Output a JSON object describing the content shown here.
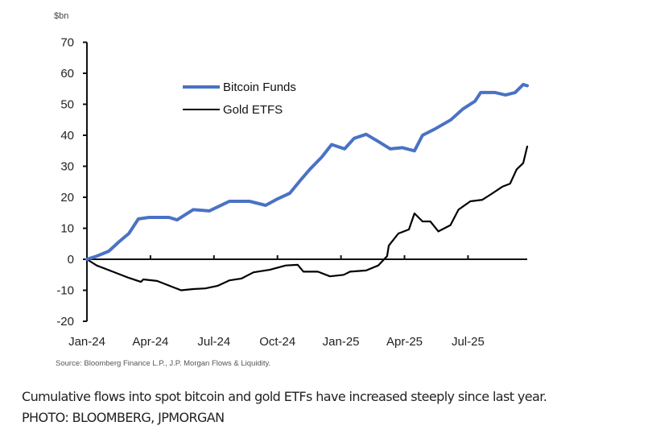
{
  "chart_data": {
    "type": "line",
    "unit_label": "$bn",
    "ylim": [
      -20,
      70
    ],
    "yticks": [
      70,
      60,
      50,
      40,
      30,
      20,
      10,
      0,
      -10,
      -20
    ],
    "ytick_labels": [
      "70",
      "60",
      "50",
      "40",
      "30",
      "20",
      "10",
      "0",
      "-10",
      "-20"
    ],
    "xlim_months": [
      0,
      21
    ],
    "xtick_positions_months": [
      0,
      3,
      6,
      9,
      12,
      15,
      18
    ],
    "xtick_labels": [
      "Jan-24",
      "Apr-24",
      "Jul-24",
      "Oct-24",
      "Jan-25",
      "Apr-25",
      "Jul-25"
    ],
    "legend": {
      "position": "top-center"
    },
    "series": [
      {
        "name": "Bitcoin Funds",
        "color": "#4a72c4",
        "x_months": [
          0,
          0.46,
          1.03,
          1.52,
          1.98,
          2.43,
          2.93,
          3.88,
          4.26,
          5.02,
          5.78,
          6.73,
          7.68,
          8.44,
          9.01,
          9.58,
          10.15,
          10.53,
          11.1,
          11.56,
          12.17,
          12.62,
          13.19,
          13.76,
          14.33,
          14.9,
          15.47,
          15.85,
          16.43,
          17.19,
          17.76,
          18.33,
          18.6,
          19.28,
          19.77,
          20.23,
          20.61,
          20.8
        ],
        "values": [
          0,
          1,
          2.6,
          5.7,
          8.3,
          13,
          13.5,
          13.5,
          12.7,
          16,
          15.6,
          18.7,
          18.7,
          17.4,
          19.5,
          21.3,
          26,
          29,
          33,
          37,
          35.6,
          39,
          40.3,
          38,
          35.6,
          36,
          35,
          40,
          42,
          45,
          48.5,
          51,
          53.8,
          53.8,
          53,
          53.8,
          56.4,
          56
        ]
      },
      {
        "name": "Gold ETFS",
        "color": "#000000",
        "x_months": [
          0,
          0.46,
          1.22,
          1.98,
          2.55,
          2.66,
          3.31,
          4.07,
          4.45,
          5.02,
          5.59,
          6.16,
          6.73,
          7.3,
          7.87,
          8.63,
          9.39,
          9.96,
          10.23,
          10.91,
          11.48,
          12.13,
          12.43,
          13.19,
          13.76,
          14.18,
          14.26,
          14.71,
          15.21,
          15.47,
          15.85,
          16.22,
          16.6,
          17.17,
          17.55,
          18.11,
          18.68,
          19.16,
          19.62,
          19.99,
          20.3,
          20.61,
          20.8
        ],
        "values": [
          0,
          -2,
          -4,
          -6,
          -7.3,
          -6.5,
          -7,
          -9,
          -10,
          -9.6,
          -9.4,
          -8.6,
          -6.8,
          -6.2,
          -4.2,
          -3.4,
          -2,
          -1.8,
          -4,
          -4,
          -5.5,
          -5,
          -4,
          -3.6,
          -2,
          1,
          4.4,
          8.3,
          9.6,
          14.8,
          12.2,
          12.2,
          9,
          11,
          16,
          18.7,
          19.2,
          21.3,
          23.4,
          24.4,
          29,
          31,
          36.4
        ]
      }
    ],
    "source": "Source: Bloomberg Finance L.P., J.P. Morgan Flows & Liquidity."
  },
  "caption": {
    "text": "Cumulative flows into spot bitcoin and gold ETFs have increased steeply since last year.",
    "credit": "PHOTO: BLOOMBERG, JPMORGAN"
  }
}
